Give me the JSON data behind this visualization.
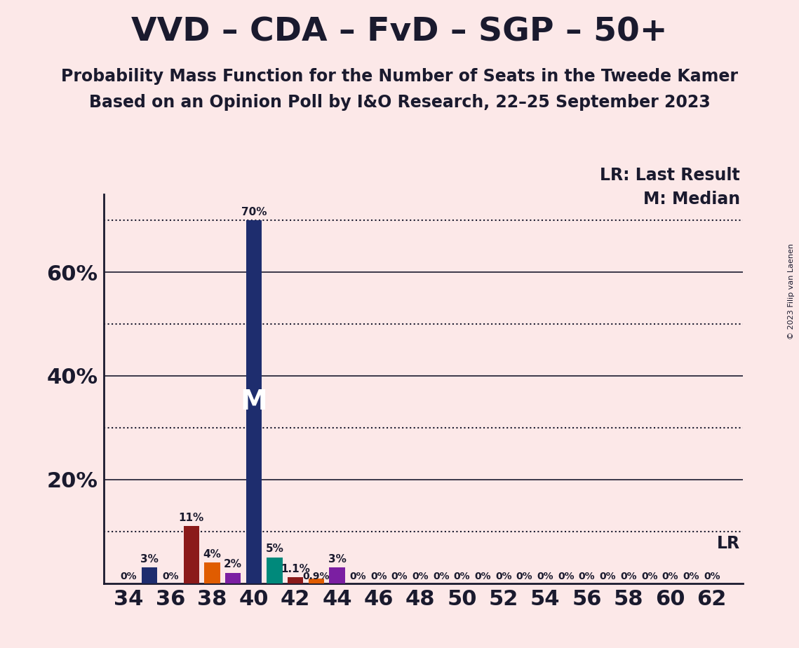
{
  "title": "VVD – CDA – FvD – SGP – 50+",
  "subtitle1": "Probability Mass Function for the Number of Seats in the Tweede Kamer",
  "subtitle2": "Based on an Opinion Poll by I&O Research, 22–25 September 2023",
  "copyright": "© 2023 Filip van Laenen",
  "background_color": "#fce8e8",
  "party_colors": {
    "VVD": "#1e2d6e",
    "CDA": "#8b1a1a",
    "FvD": "#e05c00",
    "SGP": "#7b1fa2",
    "50+": "#00897b"
  },
  "bars": [
    {
      "seat": 34,
      "party": "VVD",
      "value": 0.0,
      "label": "0%"
    },
    {
      "seat": 35,
      "party": "VVD",
      "value": 3.0,
      "label": "3%"
    },
    {
      "seat": 36,
      "party": "VVD",
      "value": 0.0,
      "label": "0%"
    },
    {
      "seat": 37,
      "party": "CDA",
      "value": 11.0,
      "label": "11%"
    },
    {
      "seat": 38,
      "party": "FvD",
      "value": 4.0,
      "label": "4%"
    },
    {
      "seat": 39,
      "party": "SGP",
      "value": 2.0,
      "label": "2%"
    },
    {
      "seat": 40,
      "party": "VVD",
      "value": 70.0,
      "label": "70%"
    },
    {
      "seat": 41,
      "party": "50+",
      "value": 5.0,
      "label": "5%"
    },
    {
      "seat": 42,
      "party": "CDA",
      "value": 1.1,
      "label": "1.1%"
    },
    {
      "seat": 43,
      "party": "FvD",
      "value": 0.9,
      "label": "0.9%"
    },
    {
      "seat": 44,
      "party": "SGP",
      "value": 3.0,
      "label": "3%"
    },
    {
      "seat": 45,
      "party": "VVD",
      "value": 0.0,
      "label": "0%"
    },
    {
      "seat": 46,
      "party": "VVD",
      "value": 0.0,
      "label": "0%"
    },
    {
      "seat": 47,
      "party": "VVD",
      "value": 0.0,
      "label": "0%"
    },
    {
      "seat": 48,
      "party": "VVD",
      "value": 0.0,
      "label": "0%"
    },
    {
      "seat": 49,
      "party": "VVD",
      "value": 0.0,
      "label": "0%"
    },
    {
      "seat": 50,
      "party": "VVD",
      "value": 0.0,
      "label": "0%"
    },
    {
      "seat": 51,
      "party": "VVD",
      "value": 0.0,
      "label": "0%"
    },
    {
      "seat": 52,
      "party": "VVD",
      "value": 0.0,
      "label": "0%"
    },
    {
      "seat": 53,
      "party": "VVD",
      "value": 0.0,
      "label": "0%"
    },
    {
      "seat": 54,
      "party": "VVD",
      "value": 0.0,
      "label": "0%"
    },
    {
      "seat": 55,
      "party": "VVD",
      "value": 0.0,
      "label": "0%"
    },
    {
      "seat": 56,
      "party": "VVD",
      "value": 0.0,
      "label": "0%"
    },
    {
      "seat": 57,
      "party": "VVD",
      "value": 0.0,
      "label": "0%"
    },
    {
      "seat": 58,
      "party": "VVD",
      "value": 0.0,
      "label": "0%"
    },
    {
      "seat": 59,
      "party": "VVD",
      "value": 0.0,
      "label": "0%"
    },
    {
      "seat": 60,
      "party": "VVD",
      "value": 0.0,
      "label": "0%"
    },
    {
      "seat": 61,
      "party": "VVD",
      "value": 0.0,
      "label": "0%"
    },
    {
      "seat": 62,
      "party": "VVD",
      "value": 0.0,
      "label": "0%"
    }
  ],
  "lr_line": 10.0,
  "median_seat": 40,
  "ylim": [
    0,
    75
  ],
  "xlim": [
    32.8,
    63.5
  ],
  "xtick_seats": [
    34,
    36,
    38,
    40,
    42,
    44,
    46,
    48,
    50,
    52,
    54,
    56,
    58,
    60,
    62
  ],
  "solid_gridlines": [
    20,
    40,
    60
  ],
  "dotted_gridlines": [
    10,
    30,
    50,
    70
  ],
  "lr_label": "LR",
  "lr_label2": "LR: Last Result",
  "median_label2": "M: Median",
  "title_fontsize": 34,
  "subtitle_fontsize": 17,
  "ytick_fontsize": 22,
  "xtick_fontsize": 22,
  "bar_label_fontsize": 11,
  "annot_fontsize": 17,
  "median_fontsize": 28,
  "copyright_fontsize": 8
}
